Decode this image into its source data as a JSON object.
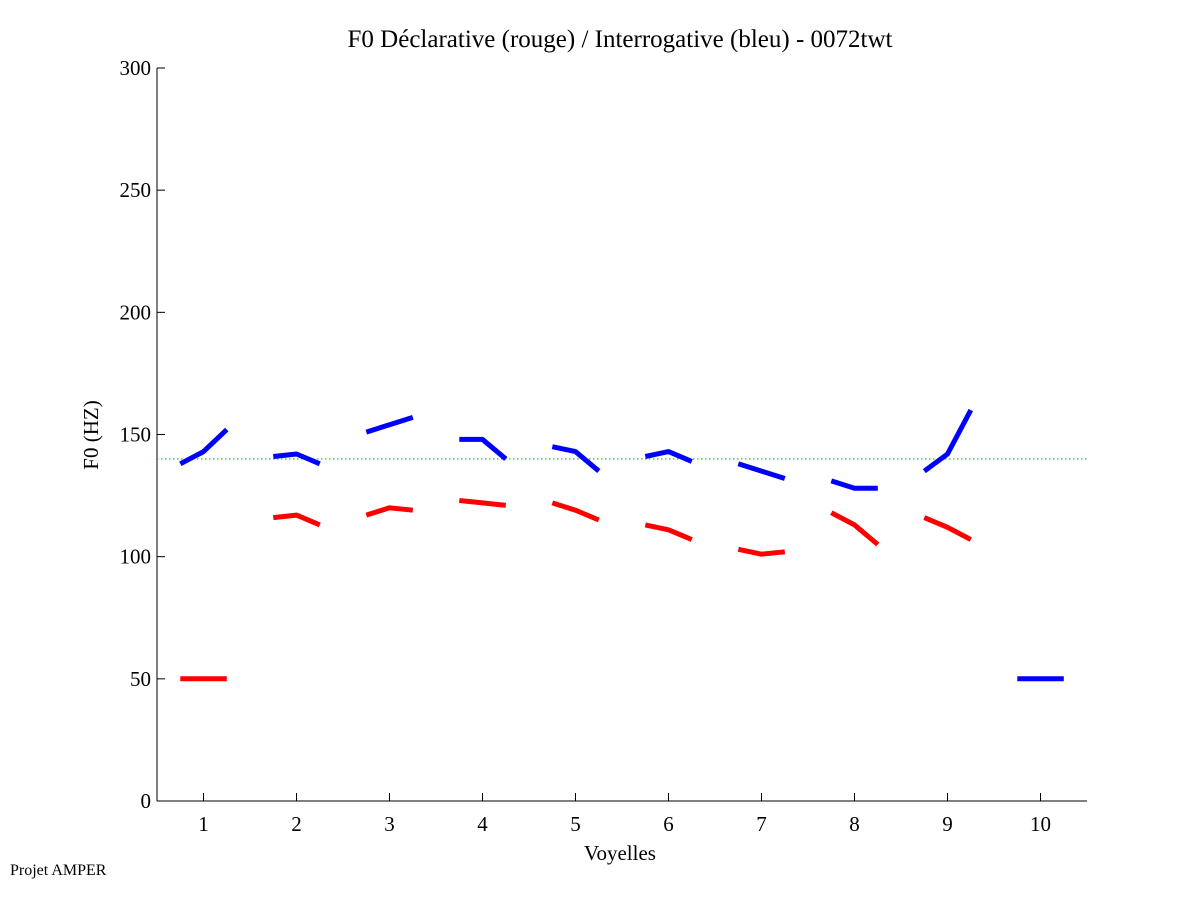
{
  "footer": "Projet AMPER",
  "chart_data": {
    "type": "line",
    "title": "F0 Déclarative (rouge) / Interrogative (bleu) - 0072twt",
    "xlabel": "Voyelles",
    "ylabel": "F0 (HZ)",
    "xlim": [
      0.5,
      10.5
    ],
    "ylim": [
      0,
      300
    ],
    "xticks": [
      1,
      2,
      3,
      4,
      5,
      6,
      7,
      8,
      9,
      10
    ],
    "yticks": [
      0,
      50,
      100,
      150,
      200,
      250,
      300
    ],
    "grid": false,
    "reference_line": {
      "y": 140,
      "color": "#00cc00",
      "style": "dotted"
    },
    "series": [
      {
        "color": "#ff0000",
        "segments": [
          {
            "x": [
              0.75,
              1.0,
              1.25
            ],
            "y": [
              50,
              50,
              50
            ]
          },
          {
            "x": [
              1.75,
              2.0,
              2.25
            ],
            "y": [
              116,
              117,
              113
            ]
          },
          {
            "x": [
              2.75,
              3.0,
              3.25
            ],
            "y": [
              117,
              120,
              119
            ]
          },
          {
            "x": [
              3.75,
              4.0,
              4.25
            ],
            "y": [
              123,
              122,
              121
            ]
          },
          {
            "x": [
              4.75,
              5.0,
              5.25
            ],
            "y": [
              122,
              119,
              115
            ]
          },
          {
            "x": [
              5.75,
              6.0,
              6.25
            ],
            "y": [
              113,
              111,
              107
            ]
          },
          {
            "x": [
              6.75,
              7.0,
              7.25
            ],
            "y": [
              103,
              101,
              102
            ]
          },
          {
            "x": [
              7.75,
              8.0,
              8.25
            ],
            "y": [
              118,
              113,
              105
            ]
          },
          {
            "x": [
              8.75,
              9.0,
              9.25
            ],
            "y": [
              116,
              112,
              107
            ]
          }
        ]
      },
      {
        "color": "#0000ff",
        "segments": [
          {
            "x": [
              0.75,
              1.0,
              1.25
            ],
            "y": [
              138,
              143,
              152
            ]
          },
          {
            "x": [
              1.75,
              2.0,
              2.25
            ],
            "y": [
              141,
              142,
              138
            ]
          },
          {
            "x": [
              2.75,
              3.0,
              3.25
            ],
            "y": [
              151,
              154,
              157
            ]
          },
          {
            "x": [
              3.75,
              4.0,
              4.25
            ],
            "y": [
              148,
              148,
              140
            ]
          },
          {
            "x": [
              4.75,
              5.0,
              5.25
            ],
            "y": [
              145,
              143,
              135
            ]
          },
          {
            "x": [
              5.75,
              6.0,
              6.25
            ],
            "y": [
              141,
              143,
              139
            ]
          },
          {
            "x": [
              6.75,
              7.0,
              7.25
            ],
            "y": [
              138,
              135,
              132
            ]
          },
          {
            "x": [
              7.75,
              8.0,
              8.25
            ],
            "y": [
              131,
              128,
              128
            ]
          },
          {
            "x": [
              8.75,
              9.0,
              9.25
            ],
            "y": [
              135,
              142,
              160
            ]
          },
          {
            "x": [
              9.75,
              10.0,
              10.25
            ],
            "y": [
              50,
              50,
              50
            ]
          }
        ]
      }
    ]
  }
}
